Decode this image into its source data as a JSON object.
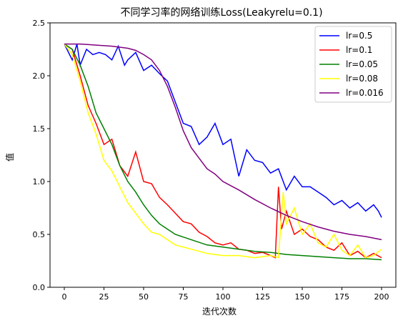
{
  "chart_data": {
    "type": "line",
    "title": "不同学习率的网络训练Loss(Leakyrelu=0.1)",
    "xlabel": "迭代次数",
    "ylabel": "值",
    "xlim": [
      -9,
      209
    ],
    "ylim": [
      0.0,
      2.5
    ],
    "xticks": [
      0,
      25,
      50,
      75,
      100,
      125,
      150,
      175,
      200
    ],
    "yticks": [
      0.0,
      0.5,
      1.0,
      1.5,
      2.0,
      2.5
    ],
    "ytick_labels": [
      "0.0",
      "0.5",
      "1.0",
      "1.5",
      "2.0",
      "2.5"
    ],
    "grid": false,
    "legend_position": "top-right",
    "series": [
      {
        "name": "lr=0.5",
        "color": "#0000ff",
        "x": [
          0,
          5,
          8,
          10,
          14,
          18,
          22,
          26,
          30,
          34,
          38,
          40,
          45,
          50,
          55,
          60,
          65,
          70,
          75,
          80,
          85,
          90,
          95,
          100,
          105,
          110,
          115,
          120,
          125,
          130,
          135,
          140,
          145,
          150,
          155,
          160,
          165,
          170,
          175,
          180,
          185,
          190,
          195,
          198,
          200
        ],
        "values": [
          2.3,
          2.15,
          2.3,
          2.1,
          2.25,
          2.2,
          2.22,
          2.2,
          2.15,
          2.28,
          2.1,
          2.15,
          2.22,
          2.05,
          2.1,
          2.02,
          1.95,
          1.75,
          1.55,
          1.52,
          1.35,
          1.42,
          1.55,
          1.35,
          1.4,
          1.05,
          1.3,
          1.2,
          1.18,
          1.08,
          1.12,
          0.92,
          1.05,
          0.95,
          0.95,
          0.9,
          0.85,
          0.78,
          0.82,
          0.75,
          0.8,
          0.72,
          0.78,
          0.72,
          0.66
        ]
      },
      {
        "name": "lr=0.1",
        "color": "#ff0000",
        "x": [
          0,
          5,
          10,
          15,
          20,
          25,
          30,
          35,
          40,
          45,
          50,
          55,
          60,
          65,
          70,
          75,
          80,
          85,
          90,
          95,
          100,
          105,
          110,
          115,
          120,
          125,
          130,
          133,
          135,
          137,
          140,
          145,
          150,
          155,
          160,
          165,
          170,
          175,
          180,
          185,
          190,
          195,
          200
        ],
        "values": [
          2.3,
          2.25,
          2.0,
          1.72,
          1.55,
          1.35,
          1.4,
          1.15,
          1.05,
          1.28,
          1.0,
          0.98,
          0.85,
          0.78,
          0.7,
          0.62,
          0.6,
          0.52,
          0.48,
          0.42,
          0.4,
          0.42,
          0.36,
          0.35,
          0.32,
          0.33,
          0.3,
          0.28,
          0.95,
          0.55,
          0.72,
          0.5,
          0.55,
          0.48,
          0.45,
          0.38,
          0.35,
          0.42,
          0.3,
          0.34,
          0.28,
          0.32,
          0.28
        ]
      },
      {
        "name": "lr=0.05",
        "color": "#008000",
        "x": [
          0,
          5,
          10,
          15,
          20,
          25,
          30,
          35,
          40,
          45,
          50,
          55,
          60,
          65,
          70,
          80,
          90,
          100,
          110,
          120,
          130,
          140,
          150,
          160,
          170,
          180,
          190,
          200
        ],
        "values": [
          2.3,
          2.25,
          2.1,
          1.9,
          1.65,
          1.5,
          1.35,
          1.15,
          1.0,
          0.9,
          0.78,
          0.68,
          0.6,
          0.55,
          0.5,
          0.45,
          0.4,
          0.38,
          0.36,
          0.34,
          0.33,
          0.31,
          0.3,
          0.29,
          0.28,
          0.27,
          0.27,
          0.26
        ]
      },
      {
        "name": "lr=0.08",
        "color": "#ffff00",
        "x": [
          0,
          5,
          10,
          15,
          20,
          25,
          30,
          35,
          40,
          45,
          50,
          55,
          60,
          65,
          70,
          80,
          90,
          100,
          110,
          120,
          130,
          135,
          138,
          140,
          145,
          150,
          155,
          160,
          165,
          170,
          175,
          180,
          185,
          190,
          195,
          200
        ],
        "values": [
          2.3,
          2.2,
          1.95,
          1.65,
          1.45,
          1.2,
          1.1,
          0.95,
          0.8,
          0.7,
          0.6,
          0.52,
          0.5,
          0.45,
          0.4,
          0.36,
          0.32,
          0.3,
          0.3,
          0.28,
          0.3,
          0.28,
          0.9,
          0.6,
          0.75,
          0.5,
          0.6,
          0.42,
          0.38,
          0.5,
          0.35,
          0.3,
          0.4,
          0.28,
          0.3,
          0.36
        ]
      },
      {
        "name": "lr=0.016",
        "color": "#800080",
        "x": [
          0,
          10,
          20,
          30,
          40,
          45,
          50,
          55,
          60,
          65,
          70,
          75,
          80,
          85,
          90,
          95,
          100,
          110,
          120,
          130,
          140,
          150,
          160,
          170,
          180,
          190,
          200
        ],
        "values": [
          2.3,
          2.3,
          2.29,
          2.28,
          2.26,
          2.24,
          2.2,
          2.15,
          2.05,
          1.9,
          1.7,
          1.48,
          1.32,
          1.22,
          1.12,
          1.07,
          1.0,
          0.92,
          0.83,
          0.75,
          0.68,
          0.62,
          0.57,
          0.53,
          0.5,
          0.48,
          0.45
        ]
      }
    ]
  }
}
